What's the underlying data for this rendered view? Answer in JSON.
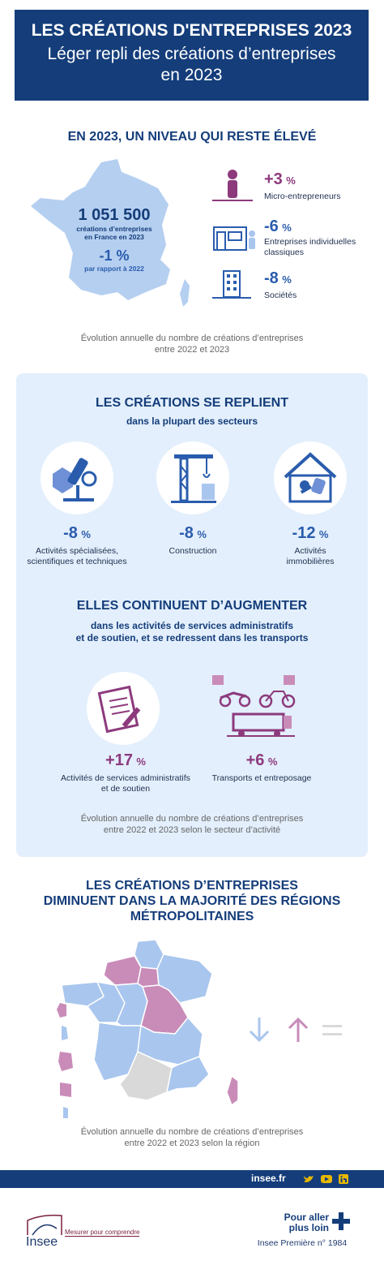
{
  "header": {
    "title": "LES CRÉATIONS D'ENTREPRISES 2023",
    "subtitle_line1": "Léger repli des créations d’entreprises",
    "subtitle_line2": "en 2023"
  },
  "section1": {
    "title": "EN 2023, UN NIVEAU QUI RESTE ÉLEVÉ",
    "total_value": "1 051 500",
    "total_label_line1": "créations d’entreprises",
    "total_label_line2": "en France en 2023",
    "total_change": "-1 %",
    "total_change_label": "par rapport à 2022",
    "items": [
      {
        "value": "+3",
        "unit": "%",
        "label": "Micro-entrepreneurs",
        "icon": "person-icon"
      },
      {
        "value": "-6",
        "unit": "%",
        "label": "Entreprises individuelles classiques",
        "icon": "shop-icon"
      },
      {
        "value": "-8",
        "unit": "%",
        "label": "Sociétés",
        "icon": "building-icon"
      }
    ],
    "caption_line1": "Évolution annuelle du nombre de créations d’entreprises",
    "caption_line2": "entre 2022 et 2023"
  },
  "section2": {
    "title": "LES CRÉATIONS SE REPLIENT",
    "subtitle": "dans la plupart des secteurs",
    "items": [
      {
        "value": "-8",
        "unit": "%",
        "label_line1": "Activités spécialisées,",
        "label_line2": "scientifiques et techniques",
        "icon": "microscope-icon"
      },
      {
        "value": "-8",
        "unit": "%",
        "label_line1": "Construction",
        "label_line2": "",
        "icon": "crane-icon"
      },
      {
        "value": "-12",
        "unit": "%",
        "label_line1": "Activités",
        "label_line2": "immobilières",
        "icon": "house-keys-icon"
      }
    ]
  },
  "section3": {
    "title": "ELLES CONTINUENT D’AUGMENTER",
    "subtitle_line1": "dans les activités de services administratifs",
    "subtitle_line2": "et de soutien, et se redressent dans les transports",
    "items": [
      {
        "value": "+17",
        "unit": "%",
        "label_line1": "Activités de services administratifs",
        "label_line2": "et de soutien",
        "icon": "document-pen-icon"
      },
      {
        "value": "+6",
        "unit": "%",
        "label_line1": "Transports et entreposage",
        "label_line2": "",
        "icon": "transport-icon"
      }
    ],
    "caption_line1": "Évolution annuelle du nombre de créations d’entreprises",
    "caption_line2": "entre 2022 et 2023 selon le secteur d’activité"
  },
  "section4": {
    "title_line1": "LES CRÉATIONS D’ENTREPRISES",
    "title_line2": "DIMINUENT DANS LA MAJORITÉ DES RÉGIONS",
    "title_line3": "MÉTROPOLITAINES",
    "legend": [
      "arrow-down-icon",
      "arrow-up-icon",
      "equal-icon"
    ],
    "caption_line1": "Évolution annuelle du nombre de créations d’entreprises",
    "caption_line2": "entre 2022 et 2023 selon la région"
  },
  "footer": {
    "site": "insee.fr",
    "social": [
      "twitter-icon",
      "youtube-icon",
      "linkedin-icon"
    ],
    "logo_text": "Insee",
    "tagline": "Mesurer pour comprendre",
    "more_line1": "Pour aller",
    "more_line2": "plus loin",
    "publication": "Insee Première n° 1984"
  },
  "colors": {
    "navy": "#143d7a",
    "blue": "#2a5cad",
    "light_blue": "#a9c6ee",
    "purple": "#8d3a7d",
    "pink": "#c98cb9",
    "panel": "#e3effc"
  }
}
